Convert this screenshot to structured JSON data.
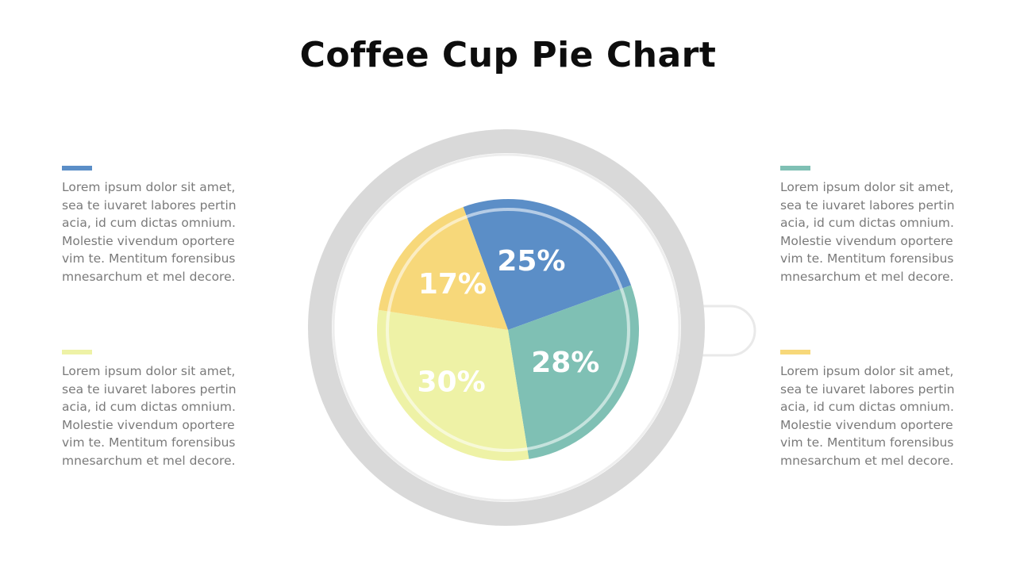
{
  "title": "Coffee Cup Pie Chart",
  "chart_data": {
    "type": "pie",
    "slices": [
      {
        "label": "25%",
        "value": 25,
        "color": "#5b8ec7"
      },
      {
        "label": "28%",
        "value": 28,
        "color": "#7fc0b4"
      },
      {
        "label": "30%",
        "value": 30,
        "color": "#eef2a6"
      },
      {
        "label": "17%",
        "value": 17,
        "color": "#f7d87a"
      }
    ]
  },
  "blocks": {
    "top_left": {
      "color": "#5b8ec7",
      "text": "Lorem ipsum dolor sit amet, sea te iuvaret labores pertinacia, id cum dictas omnium. Molestie vivendum oportere vim te. Mentitum forensibus mnesarchum et mel decore."
    },
    "bottom_left": {
      "color": "#eef2a6",
      "text": "Lorem ipsum dolor sit amet, sea te iuvaret labores pertinacia, id cum dictas omnium. Molestie vivendum oportere vim te. Mentitum forensibus mnesarchum et mel decore."
    },
    "top_right": {
      "color": "#7fc0b4",
      "text": "Lorem ipsum dolor sit amet, sea te iuvaret labores pertinacia, id cum dictas omnium. Molestie vivendum oportere vim te. Mentitum forensibus mnesarchum et mel decore."
    },
    "bottom_right": {
      "color": "#f7d87a",
      "text": "Lorem ipsum dolor sit amet, sea te iuvaret labores pertinacia, id cum dictas omnium. Molestie vivendum oportere vim te. Mentitum forensibus mnesarchum et mel decore."
    }
  },
  "cup_color": "#d9d9d9"
}
